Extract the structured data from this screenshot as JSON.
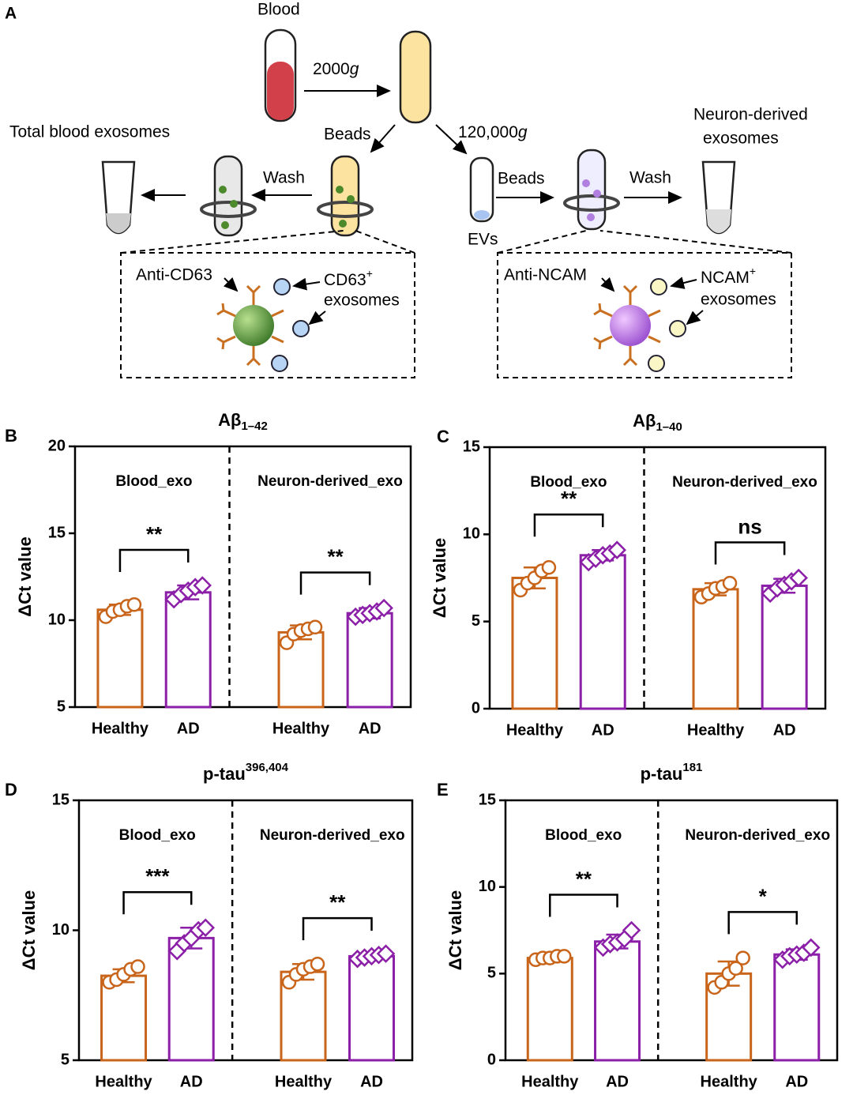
{
  "panel_a": {
    "label": "A",
    "blood": "Blood",
    "spin_1": "2000",
    "spin_1_unit": "g",
    "total": "Total blood exosomes",
    "beads_1": "Beads",
    "spin_2": "120,000",
    "spin_2_unit": "g",
    "neuron_1": "Neuron-derived",
    "neuron_2": "exosomes",
    "wash_1": "Wash",
    "beads_2": "Beads",
    "wash_2": "Wash",
    "evs": "EVs",
    "anti_cd63": "Anti-CD63",
    "cd63": "CD63",
    "cd63_sup": "+",
    "cd63_exo": "exosomes",
    "anti_ncam": "Anti-NCAM",
    "ncam": "NCAM",
    "ncam_sup": "+",
    "ncam_exo": "exosomes"
  },
  "chart_data": [
    {
      "type": "bar",
      "panel": "B",
      "title": "Aβ",
      "title_sub": "1–42",
      "ylabel": "ΔCt value",
      "groups": [
        "Blood_exo",
        "Neuron-derived_exo"
      ],
      "categories": [
        "Healthy",
        "AD",
        "Healthy",
        "AD"
      ],
      "colors": [
        "#c8651b",
        "#8b1fa8",
        "#c8651b",
        "#8b1fa8"
      ],
      "markers": [
        "circle",
        "diamond",
        "circle",
        "diamond"
      ],
      "values": [
        10.6,
        11.6,
        9.3,
        10.4
      ],
      "errors": [
        0.3,
        0.4,
        0.4,
        0.3
      ],
      "points": [
        [
          10.2,
          10.5,
          10.6,
          10.8,
          10.9
        ],
        [
          11.2,
          11.5,
          11.7,
          11.9,
          12.0
        ],
        [
          8.7,
          9.2,
          9.4,
          9.5,
          9.6
        ],
        [
          10.2,
          10.3,
          10.4,
          10.5,
          10.7
        ]
      ],
      "significance": [
        "**",
        "**"
      ],
      "ylim": [
        5,
        20
      ],
      "yticks": [
        5,
        10,
        15,
        20
      ]
    },
    {
      "type": "bar",
      "panel": "C",
      "title": "Aβ",
      "title_sub": "1–40",
      "ylabel": "ΔCt value",
      "groups": [
        "Blood_exo",
        "Neuron-derived_exo"
      ],
      "categories": [
        "Healthy",
        "AD",
        "Healthy",
        "AD"
      ],
      "colors": [
        "#c8651b",
        "#8b1fa8",
        "#c8651b",
        "#8b1fa8"
      ],
      "markers": [
        "circle",
        "diamond",
        "circle",
        "diamond"
      ],
      "values": [
        7.5,
        8.8,
        6.85,
        7.05
      ],
      "errors": [
        0.6,
        0.3,
        0.35,
        0.4
      ],
      "points": [
        [
          6.8,
          7.2,
          7.5,
          7.9,
          8.1
        ],
        [
          8.4,
          8.6,
          8.8,
          8.9,
          9.1
        ],
        [
          6.4,
          6.6,
          6.9,
          7.0,
          7.2
        ],
        [
          6.6,
          6.9,
          7.1,
          7.3,
          7.5
        ]
      ],
      "significance": [
        "**",
        "ns"
      ],
      "ylim": [
        0,
        15
      ],
      "yticks": [
        0,
        5,
        10,
        15
      ]
    },
    {
      "type": "bar",
      "panel": "D",
      "title": "p-tau",
      "title_sup": "396,404",
      "ylabel": "ΔCt value",
      "groups": [
        "Blood_exo",
        "Neuron-derived_exo"
      ],
      "categories": [
        "Healthy",
        "AD",
        "Healthy",
        "AD"
      ],
      "colors": [
        "#c8651b",
        "#8b1fa8",
        "#c8651b",
        "#8b1fa8"
      ],
      "markers": [
        "circle",
        "diamond",
        "circle",
        "diamond"
      ],
      "values": [
        8.25,
        9.7,
        8.4,
        9.0
      ],
      "errors": [
        0.25,
        0.4,
        0.3,
        0.08
      ],
      "points": [
        [
          8.0,
          8.1,
          8.3,
          8.5,
          8.6
        ],
        [
          9.2,
          9.5,
          9.7,
          10.0,
          10.1
        ],
        [
          8.0,
          8.3,
          8.5,
          8.6,
          8.7
        ],
        [
          8.9,
          8.95,
          9.0,
          9.05,
          9.1
        ]
      ],
      "significance": [
        "***",
        "**"
      ],
      "ylim": [
        5,
        15
      ],
      "yticks": [
        5,
        10,
        15
      ]
    },
    {
      "type": "bar",
      "panel": "E",
      "title": "p-tau",
      "title_sup": "181",
      "ylabel": "ΔCt value",
      "groups": [
        "Blood_exo",
        "Neuron-derived_exo"
      ],
      "categories": [
        "Healthy",
        "AD",
        "Healthy",
        "AD"
      ],
      "colors": [
        "#c8651b",
        "#8b1fa8",
        "#c8651b",
        "#8b1fa8"
      ],
      "markers": [
        "circle",
        "diamond",
        "circle",
        "diamond"
      ],
      "values": [
        5.9,
        6.85,
        5.0,
        6.1
      ],
      "errors": [
        0.1,
        0.4,
        0.7,
        0.3
      ],
      "points": [
        [
          5.8,
          5.9,
          5.9,
          6.0,
          6.0
        ],
        [
          6.5,
          6.7,
          6.8,
          7.0,
          7.5
        ],
        [
          4.2,
          4.5,
          5.0,
          5.3,
          5.9
        ],
        [
          5.8,
          6.0,
          6.1,
          6.2,
          6.5
        ]
      ],
      "significance": [
        "**",
        "*"
      ],
      "ylim": [
        0,
        15
      ],
      "yticks": [
        0,
        5,
        10,
        15
      ]
    }
  ]
}
